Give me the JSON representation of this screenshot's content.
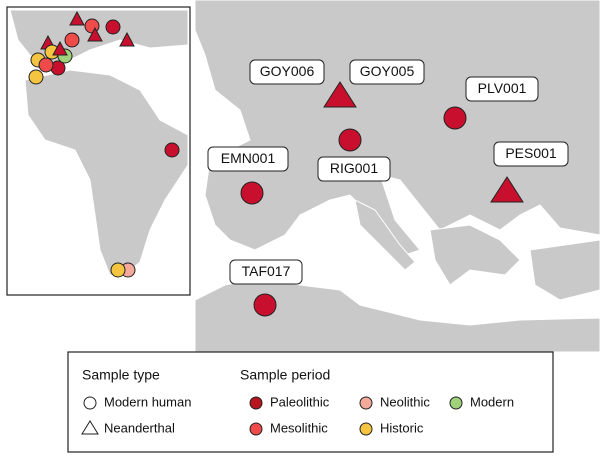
{
  "labels": [
    "GOY006",
    "GOY005",
    "PLV001",
    "PES001",
    "EMN001",
    "RIG001",
    "TAF017"
  ],
  "legend": {
    "sample_type": {
      "title": "Sample type",
      "items": [
        "Modern human",
        "Neanderthal"
      ]
    },
    "sample_period": {
      "title": "Sample period",
      "items": [
        "Paleolithic",
        "Mesolithic",
        "Neolithic",
        "Historic",
        "Modern"
      ]
    }
  }
}
